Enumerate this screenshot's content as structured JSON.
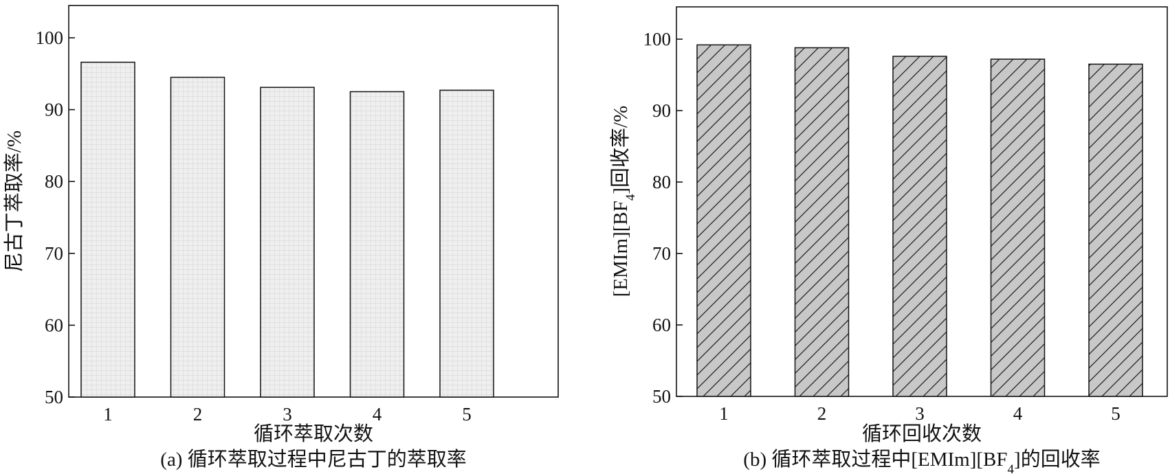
{
  "chart_data": [
    {
      "type": "bar",
      "categories": [
        "1",
        "2",
        "3",
        "4",
        "5"
      ],
      "values": [
        96.6,
        94.5,
        93.1,
        92.5,
        92.7
      ],
      "xlabel": "循环萃取次数",
      "ylabel": "尼古丁萃取率/%",
      "caption": "(a) 循环萃取过程中尼古丁的萃取率",
      "ylim": [
        50,
        105
      ],
      "yticks": [
        50,
        60,
        70,
        80,
        90,
        100
      ],
      "pattern": "grid",
      "bar_color": "#efefef",
      "grid": false
    },
    {
      "type": "bar",
      "categories": [
        "1",
        "2",
        "3",
        "4",
        "5"
      ],
      "values": [
        99.2,
        98.8,
        97.6,
        97.2,
        96.5
      ],
      "xlabel": "循环回收次数",
      "ylabel_parts": [
        "[EMIm][BF",
        "4",
        "]回收率/%"
      ],
      "caption_parts": [
        "(b) 循环萃取过程中[EMIm][BF",
        "4",
        "]的回收率"
      ],
      "ylim": [
        50,
        105
      ],
      "yticks": [
        50,
        60,
        70,
        80,
        90,
        100
      ],
      "pattern": "diagonal-hatch",
      "bar_color": "#c8c8c8",
      "grid": false
    }
  ]
}
